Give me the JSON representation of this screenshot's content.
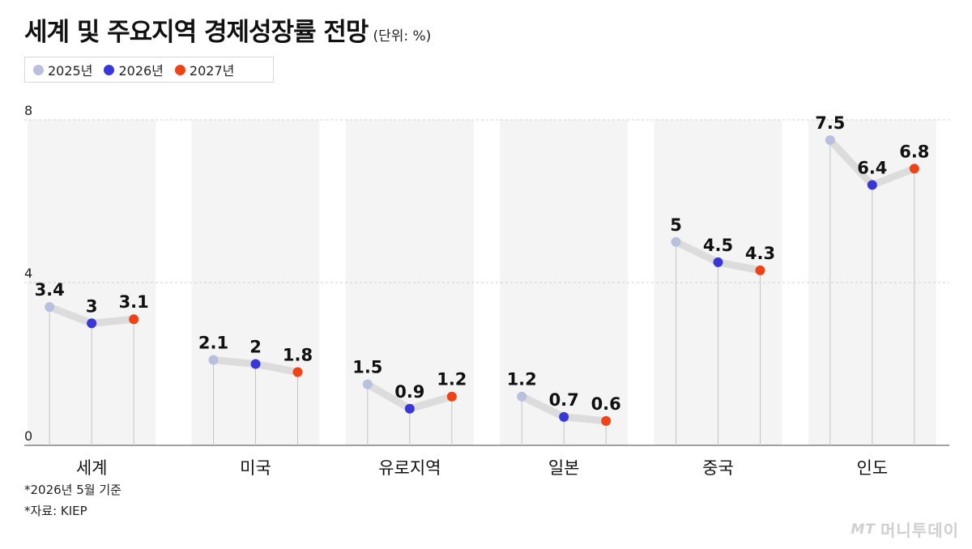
{
  "title": "세계 및 주요지역 경제성장률 전망",
  "unit": "(단위: %)",
  "colors": {
    "s2025": "#b8c0de",
    "s2026": "#3a37d9",
    "s2027": "#f04217",
    "line": "#dcdcdc",
    "band": "#f4f4f4"
  },
  "chart_data": {
    "type": "line",
    "categories": [
      "세계",
      "미국",
      "유로지역",
      "일본",
      "중국",
      "인도"
    ],
    "series": [
      {
        "name": "2025년",
        "values": [
          3.4,
          2.1,
          1.5,
          1.2,
          5,
          7.5
        ]
      },
      {
        "name": "2026년",
        "values": [
          3,
          2,
          0.9,
          0.7,
          4.5,
          6.4
        ]
      },
      {
        "name": "2027년",
        "values": [
          3.1,
          1.8,
          1.2,
          0.6,
          4.3,
          6.8
        ]
      }
    ],
    "data_labels": [
      [
        "3.4",
        "3",
        "3.1"
      ],
      [
        "2.1",
        "2",
        "1.8"
      ],
      [
        "1.5",
        "0.9",
        "1.2"
      ],
      [
        "1.2",
        "0.7",
        "0.6"
      ],
      [
        "5",
        "4.5",
        "4.3"
      ],
      [
        "7.5",
        "6.4",
        "6.8"
      ]
    ],
    "yticks": [
      "0",
      "4",
      "8"
    ],
    "ylim": [
      0,
      8
    ],
    "grid": true,
    "legend": "top-left"
  },
  "notes": [
    "*2026년 5월 기준",
    "*자료: KIEP"
  ],
  "watermark": {
    "logo": "MT",
    "text": "머니투데이"
  }
}
